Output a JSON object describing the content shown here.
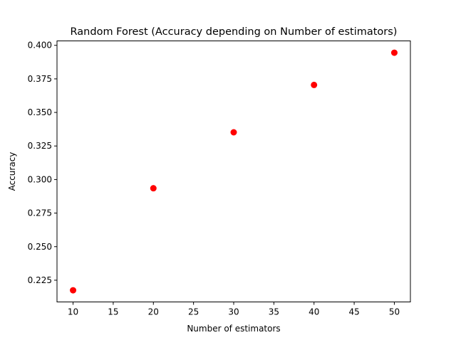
{
  "chart_data": {
    "type": "scatter",
    "title": "Random Forest (Accuracy depending on Number of estimators)",
    "xlabel": "Number of estimators",
    "ylabel": "Accuracy",
    "x": [
      10,
      20,
      30,
      40,
      50
    ],
    "y": [
      0.2175,
      0.2935,
      0.3352,
      0.3705,
      0.3945
    ],
    "xlim": [
      8,
      52
    ],
    "ylim": [
      0.2088,
      0.4033
    ],
    "xticks": [
      10,
      15,
      20,
      25,
      30,
      35,
      40,
      45,
      50
    ],
    "yticks": [
      0.225,
      0.25,
      0.275,
      0.3,
      0.325,
      0.35,
      0.375,
      0.4
    ],
    "xtick_labels": [
      "10",
      "15",
      "20",
      "25",
      "30",
      "35",
      "40",
      "45",
      "50"
    ],
    "ytick_labels": [
      "0.225",
      "0.250",
      "0.275",
      "0.300",
      "0.325",
      "0.350",
      "0.375",
      "0.400"
    ],
    "marker_color": "#ff0000",
    "grid": false,
    "legend": false
  }
}
